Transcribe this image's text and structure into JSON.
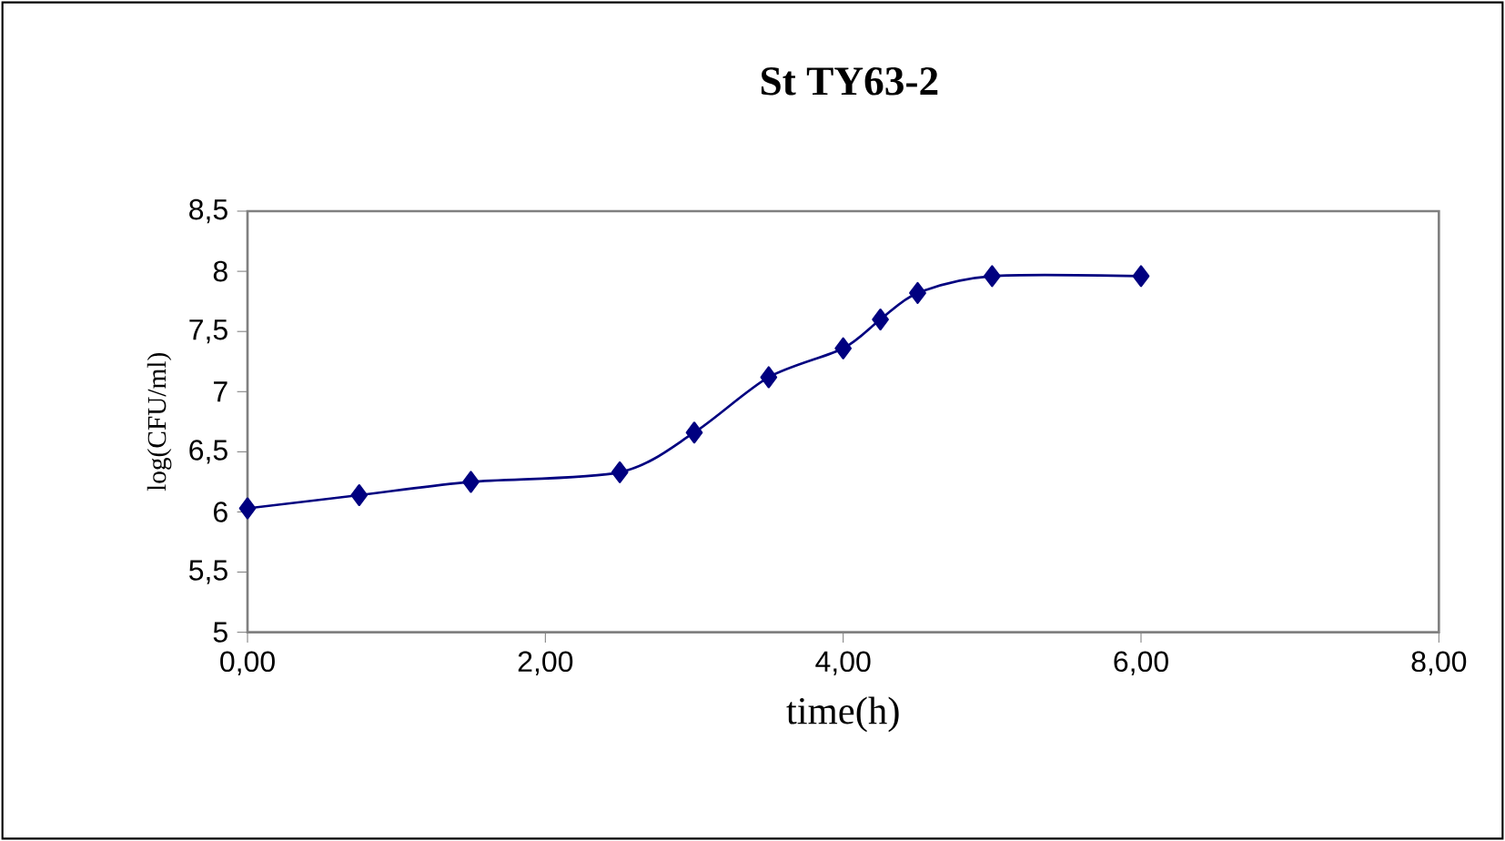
{
  "chart_data": {
    "type": "line",
    "title": "St TY63-2",
    "xlabel": "time(h)",
    "ylabel": "log(CFU/ml)",
    "x": [
      0,
      0.75,
      1.5,
      2.5,
      3.0,
      3.5,
      4.0,
      4.25,
      4.5,
      5.0,
      6.0
    ],
    "series": [
      {
        "color": "#000080",
        "values": [
          6.03,
          6.14,
          6.25,
          6.33,
          6.66,
          7.12,
          7.36,
          7.6,
          7.82,
          7.96,
          7.96
        ]
      }
    ],
    "xlim": [
      0,
      8
    ],
    "ylim": [
      5,
      8.5
    ],
    "xticks": [
      {
        "value": 0,
        "label": "0,00"
      },
      {
        "value": 2,
        "label": "2,00"
      },
      {
        "value": 4,
        "label": "4,00"
      },
      {
        "value": 6,
        "label": "6,00"
      },
      {
        "value": 8,
        "label": "8,00"
      }
    ],
    "yticks": [
      5,
      {
        "value": 5.5,
        "label": "5,5"
      },
      6,
      {
        "value": 6.5,
        "label": "6,5"
      },
      7,
      {
        "value": 7.5,
        "label": "7,5"
      },
      8,
      {
        "value": 8.5,
        "label": "8,5"
      }
    ],
    "marker": "diamond",
    "line_style": "solid"
  }
}
